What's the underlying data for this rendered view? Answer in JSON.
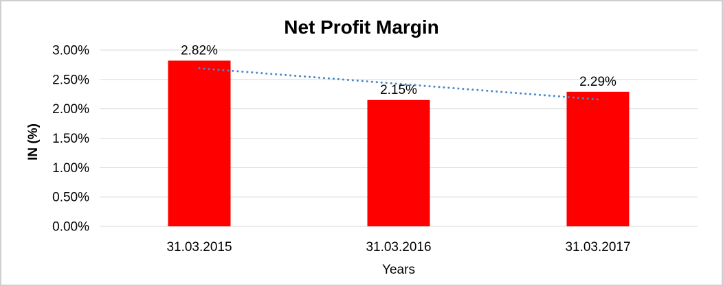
{
  "chart_data": {
    "type": "bar",
    "title": "Net Profit Margin",
    "xlabel": "Years",
    "ylabel": "IN (%)",
    "categories": [
      "31.03.2015",
      "31.03.2016",
      "31.03.2017"
    ],
    "values": [
      2.82,
      2.15,
      2.29
    ],
    "value_labels": [
      "2.82%",
      "2.15%",
      "2.29%"
    ],
    "ylim": [
      0,
      3
    ],
    "ytick_step": 0.5,
    "yticks": [
      "0.00%",
      "0.50%",
      "1.00%",
      "1.50%",
      "2.00%",
      "2.50%",
      "3.00%"
    ],
    "grid": true,
    "legend": "none",
    "bar_color": "#FF0000",
    "gridline_color": "#D9D9D9",
    "text_color": "#000000",
    "trendline": {
      "type": "linear",
      "style": "dotted",
      "color": "#4A89C8",
      "start_value": 2.69,
      "end_value": 2.16
    }
  }
}
